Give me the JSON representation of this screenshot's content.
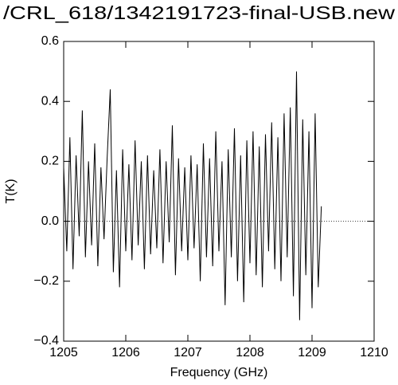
{
  "chart_data": {
    "type": "line",
    "title": "/CRL_618/1342191723-final-USB.new",
    "x_label": "Frequency (GHz)",
    "y_label": "T(K)",
    "xlim": [
      1205,
      1210
    ],
    "xticks": [
      1205,
      1206,
      1207,
      1208,
      1209,
      1210
    ],
    "ylim": [
      -0.4,
      0.6
    ],
    "yticks": [
      {
        "value": -0.4,
        "label": "−0.4"
      },
      {
        "value": -0.2,
        "label": "−0.2"
      },
      {
        "value": 0,
        "label": "0.0"
      },
      {
        "value": 0.2,
        "label": "0.2"
      },
      {
        "value": 0.4,
        "label": "0.4"
      },
      {
        "value": 0.6,
        "label": "0.6"
      }
    ],
    "hlines": [
      {
        "y": 0,
        "style": "dotted"
      }
    ],
    "series": [
      {
        "color": "#000000",
        "x": [
          1205.0,
          1205.05,
          1205.1,
          1205.15,
          1205.2,
          1205.25,
          1205.3,
          1205.35,
          1205.4,
          1205.45,
          1205.5,
          1205.55,
          1205.6,
          1205.65,
          1205.7,
          1205.75,
          1205.8,
          1205.85,
          1205.9,
          1205.95,
          1206.0,
          1206.05,
          1206.1,
          1206.15,
          1206.2,
          1206.25,
          1206.3,
          1206.35,
          1206.4,
          1206.45,
          1206.5,
          1206.55,
          1206.6,
          1206.65,
          1206.7,
          1206.75,
          1206.8,
          1206.85,
          1206.9,
          1206.95,
          1207.0,
          1207.05,
          1207.1,
          1207.15,
          1207.2,
          1207.25,
          1207.3,
          1207.35,
          1207.4,
          1207.45,
          1207.5,
          1207.55,
          1207.6,
          1207.65,
          1207.7,
          1207.75,
          1207.8,
          1207.85,
          1207.9,
          1207.95,
          1208.0,
          1208.05,
          1208.1,
          1208.15,
          1208.2,
          1208.25,
          1208.3,
          1208.35,
          1208.4,
          1208.45,
          1208.5,
          1208.55,
          1208.6,
          1208.65,
          1208.7,
          1208.75,
          1208.8,
          1208.85,
          1208.9,
          1208.95,
          1209.0,
          1209.05,
          1209.1,
          1209.15
        ],
        "values": [
          0.18,
          -0.1,
          0.28,
          -0.16,
          0.22,
          -0.05,
          0.37,
          -0.12,
          0.2,
          -0.08,
          0.26,
          -0.15,
          0.18,
          -0.06,
          0.21,
          0.44,
          -0.17,
          0.17,
          -0.22,
          0.24,
          -0.1,
          0.19,
          -0.13,
          0.27,
          -0.08,
          0.2,
          -0.16,
          0.22,
          -0.11,
          0.17,
          -0.09,
          0.24,
          -0.14,
          0.2,
          -0.07,
          0.32,
          -0.18,
          0.21,
          -0.1,
          0.18,
          -0.13,
          0.22,
          -0.09,
          0.19,
          -0.2,
          0.26,
          -0.12,
          0.21,
          -0.15,
          0.3,
          -0.1,
          0.2,
          -0.28,
          0.24,
          -0.12,
          0.31,
          -0.2,
          0.22,
          -0.27,
          0.27,
          -0.14,
          0.3,
          -0.18,
          0.25,
          -0.22,
          0.29,
          -0.1,
          0.33,
          -0.16,
          0.28,
          -0.2,
          0.36,
          -0.12,
          0.38,
          -0.25,
          0.5,
          -0.33,
          0.34,
          -0.18,
          0.3,
          -0.29,
          0.36,
          -0.22,
          0.05
        ]
      }
    ]
  }
}
